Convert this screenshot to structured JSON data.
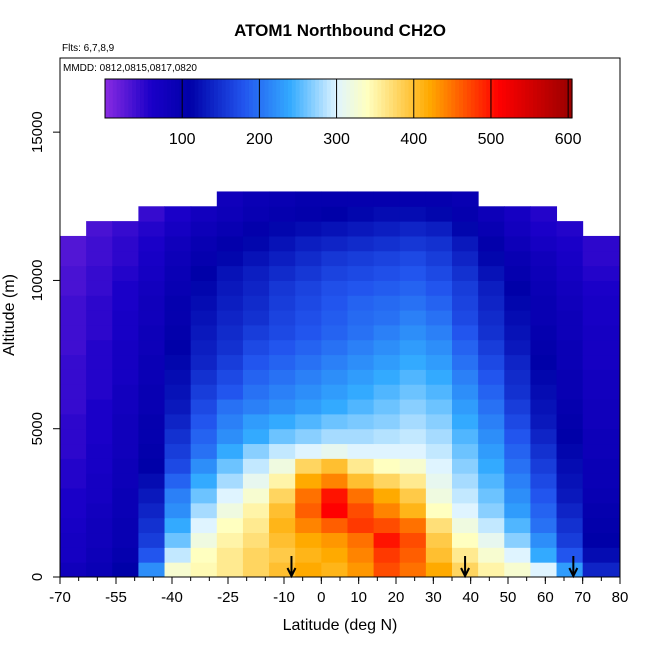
{
  "chart_data": {
    "type": "heatmap",
    "title": "ATOM1 Northbound CH2O",
    "subtitle_flights": "Flts: 6,7,8,9",
    "subtitle_dates": "MMDD: 0812,0815,0817,0820",
    "xlabel": "Latitude (deg N)",
    "ylabel": "Altitude (m)",
    "xlim": [
      -70,
      80
    ],
    "ylim": [
      0,
      17500
    ],
    "x_ticks": [
      -70,
      -55,
      -40,
      -25,
      -10,
      0,
      10,
      20,
      30,
      40,
      50,
      60,
      70,
      80
    ],
    "x_tick_labels": [
      "-70",
      "-55",
      "-40",
      "-25",
      "-10",
      "0",
      "10",
      "20",
      "30",
      "40",
      "50",
      "60",
      "70",
      "80"
    ],
    "y_ticks": [
      0,
      5000,
      10000,
      15000
    ],
    "y_tick_labels": [
      "0",
      "5000",
      "10000",
      "15000"
    ],
    "colorbar": {
      "range": [
        0,
        605
      ],
      "ticks": [
        100,
        200,
        300,
        400,
        500,
        600
      ],
      "tick_labels": [
        "100",
        "200",
        "300",
        "400",
        "500",
        "600"
      ],
      "stops": [
        {
          "v": 0,
          "c": "#8a2be2"
        },
        {
          "v": 60,
          "c": "#1a00c8"
        },
        {
          "v": 110,
          "c": "#0000a8"
        },
        {
          "v": 180,
          "c": "#2255ee"
        },
        {
          "v": 240,
          "c": "#33aaff"
        },
        {
          "v": 300,
          "c": "#dff4ff"
        },
        {
          "v": 340,
          "c": "#ffffc0"
        },
        {
          "v": 420,
          "c": "#ffaa00"
        },
        {
          "v": 510,
          "c": "#ff0000"
        },
        {
          "v": 605,
          "c": "#990000"
        }
      ]
    },
    "grid": {
      "lat_edges": [
        -70,
        -63,
        -56,
        -49,
        -42,
        -35,
        -28,
        -21,
        -14,
        -7,
        0,
        7,
        14,
        21,
        28,
        35,
        42,
        49,
        56,
        63,
        70,
        80
      ],
      "alt_edges": [
        0,
        500,
        1000,
        1500,
        2000,
        2500,
        3000,
        3500,
        4000,
        4500,
        5000,
        5500,
        6000,
        6500,
        7000,
        7500,
        8000,
        8500,
        9000,
        9500,
        10000,
        10500,
        11000,
        11500,
        12000,
        12500,
        13000
      ],
      "values": [
        [
          80,
          90,
          110,
          220,
          330,
          345,
          360,
          380,
          400,
          420,
          410,
          430,
          470,
          450,
          420,
          380,
          350,
          330,
          300,
          230,
          140
        ],
        [
          70,
          85,
          100,
          180,
          290,
          340,
          360,
          380,
          390,
          410,
          420,
          440,
          480,
          460,
          400,
          360,
          330,
          300,
          240,
          180,
          120
        ],
        [
          70,
          80,
          95,
          160,
          260,
          320,
          350,
          370,
          400,
          420,
          430,
          450,
          500,
          470,
          390,
          340,
          310,
          270,
          220,
          160,
          110
        ],
        [
          65,
          80,
          95,
          150,
          240,
          300,
          340,
          360,
          410,
          440,
          460,
          480,
          470,
          450,
          370,
          320,
          290,
          250,
          200,
          150,
          105
        ],
        [
          60,
          75,
          90,
          140,
          220,
          280,
          320,
          350,
          400,
          460,
          510,
          470,
          440,
          410,
          340,
          300,
          270,
          230,
          190,
          140,
          100
        ],
        [
          60,
          70,
          90,
          130,
          210,
          260,
          300,
          330,
          380,
          450,
          500,
          450,
          420,
          390,
          320,
          290,
          260,
          220,
          180,
          130,
          95
        ],
        [
          55,
          70,
          85,
          120,
          190,
          240,
          280,
          310,
          350,
          420,
          440,
          400,
          380,
          360,
          310,
          280,
          250,
          210,
          170,
          125,
          90
        ],
        [
          55,
          65,
          85,
          110,
          170,
          220,
          260,
          290,
          320,
          380,
          400,
          360,
          340,
          330,
          300,
          270,
          240,
          200,
          160,
          120,
          90
        ],
        [
          50,
          65,
          80,
          105,
          160,
          200,
          240,
          270,
          290,
          300,
          310,
          300,
          300,
          300,
          290,
          260,
          230,
          190,
          150,
          115,
          85
        ],
        [
          50,
          60,
          80,
          100,
          150,
          190,
          220,
          240,
          260,
          270,
          280,
          280,
          285,
          290,
          280,
          250,
          220,
          180,
          140,
          110,
          85
        ],
        [
          50,
          60,
          80,
          100,
          140,
          180,
          210,
          230,
          240,
          250,
          260,
          265,
          270,
          280,
          270,
          240,
          210,
          170,
          130,
          105,
          80
        ],
        [
          45,
          60,
          75,
          95,
          130,
          170,
          200,
          210,
          220,
          230,
          240,
          250,
          260,
          270,
          260,
          230,
          200,
          160,
          125,
          100,
          80
        ],
        [
          45,
          55,
          75,
          95,
          125,
          160,
          180,
          200,
          210,
          220,
          230,
          240,
          250,
          260,
          250,
          220,
          190,
          150,
          120,
          95,
          75
        ],
        [
          45,
          55,
          70,
          90,
          120,
          150,
          170,
          190,
          200,
          210,
          220,
          230,
          240,
          250,
          240,
          210,
          180,
          145,
          115,
          95,
          75
        ],
        [
          45,
          55,
          70,
          90,
          115,
          140,
          160,
          180,
          190,
          200,
          210,
          220,
          230,
          240,
          230,
          200,
          170,
          140,
          110,
          90,
          70
        ],
        [
          40,
          55,
          70,
          85,
          110,
          135,
          150,
          170,
          180,
          190,
          200,
          210,
          220,
          230,
          220,
          190,
          160,
          130,
          105,
          90,
          70
        ],
        [
          40,
          50,
          65,
          85,
          105,
          130,
          145,
          160,
          170,
          180,
          190,
          200,
          210,
          220,
          210,
          180,
          150,
          125,
          100,
          85,
          70
        ],
        [
          40,
          50,
          65,
          80,
          100,
          125,
          140,
          150,
          165,
          175,
          185,
          195,
          200,
          210,
          200,
          170,
          145,
          120,
          95,
          85,
          65
        ],
        [
          40,
          50,
          60,
          80,
          100,
          120,
          135,
          145,
          160,
          170,
          180,
          190,
          195,
          200,
          190,
          165,
          140,
          115,
          95,
          80,
          65
        ],
        [
          35,
          45,
          60,
          75,
          95,
          115,
          130,
          140,
          155,
          165,
          175,
          180,
          185,
          190,
          180,
          160,
          135,
          110,
          90,
          75,
          60
        ],
        [
          35,
          45,
          55,
          70,
          90,
          110,
          125,
          135,
          145,
          155,
          165,
          170,
          175,
          180,
          170,
          150,
          125,
          100,
          85,
          70,
          55
        ],
        [
          30,
          40,
          50,
          65,
          85,
          100,
          115,
          125,
          135,
          145,
          155,
          160,
          165,
          170,
          160,
          140,
          115,
          95,
          80,
          65,
          50
        ],
        [
          30,
          40,
          50,
          60,
          80,
          95,
          105,
          115,
          125,
          135,
          140,
          145,
          150,
          155,
          150,
          130,
          105,
          85,
          70,
          60,
          50
        ],
        [
          null,
          35,
          45,
          55,
          70,
          85,
          95,
          105,
          115,
          120,
          125,
          130,
          135,
          140,
          135,
          115,
          95,
          75,
          60,
          55,
          null
        ],
        [
          null,
          null,
          null,
          45,
          60,
          75,
          85,
          95,
          100,
          105,
          110,
          115,
          120,
          120,
          115,
          100,
          85,
          70,
          55,
          null,
          null
        ],
        [
          null,
          null,
          null,
          null,
          null,
          null,
          80,
          90,
          95,
          100,
          100,
          100,
          100,
          100,
          100,
          95,
          null,
          null,
          null,
          null,
          null
        ]
      ]
    },
    "flight_track_markers": [
      -8,
      38.5,
      67.5
    ]
  }
}
